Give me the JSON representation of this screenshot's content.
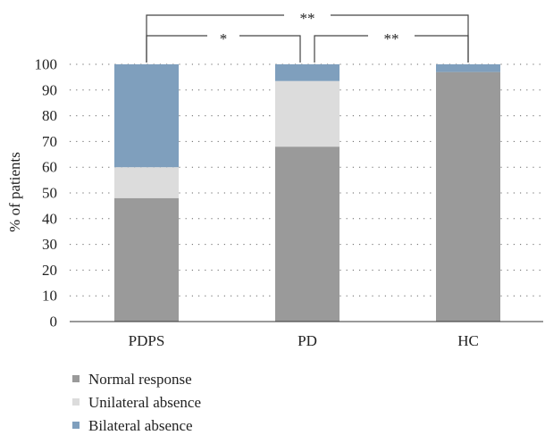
{
  "chart_data": {
    "type": "bar",
    "stacked": true,
    "categories": [
      "PDPS",
      "PD",
      "HC"
    ],
    "series": [
      {
        "name": "Normal response",
        "values": [
          48,
          68,
          97
        ],
        "color": "#9a9a9a"
      },
      {
        "name": "Unilateral absence",
        "values": [
          12,
          25.5,
          0
        ],
        "color": "#dcdcdc"
      },
      {
        "name": "Bilateral absence",
        "values": [
          40,
          6.5,
          3
        ],
        "color": "#7f9fbd"
      }
    ],
    "ylabel": "% of patients",
    "xlabel": "",
    "title": "",
    "ylim": [
      0,
      100
    ],
    "yticks": [
      "0",
      "10",
      "20",
      "30",
      "40",
      "50",
      "60",
      "70",
      "80",
      "90",
      "100"
    ],
    "grid": "dotted horizontal",
    "legend_position": "bottom-left",
    "significance": [
      {
        "from": "PDPS",
        "to": "PD",
        "label": "*"
      },
      {
        "from": "PD",
        "to": "HC",
        "label": "**"
      },
      {
        "from": "PDPS",
        "to": "HC",
        "label": "**"
      }
    ]
  }
}
